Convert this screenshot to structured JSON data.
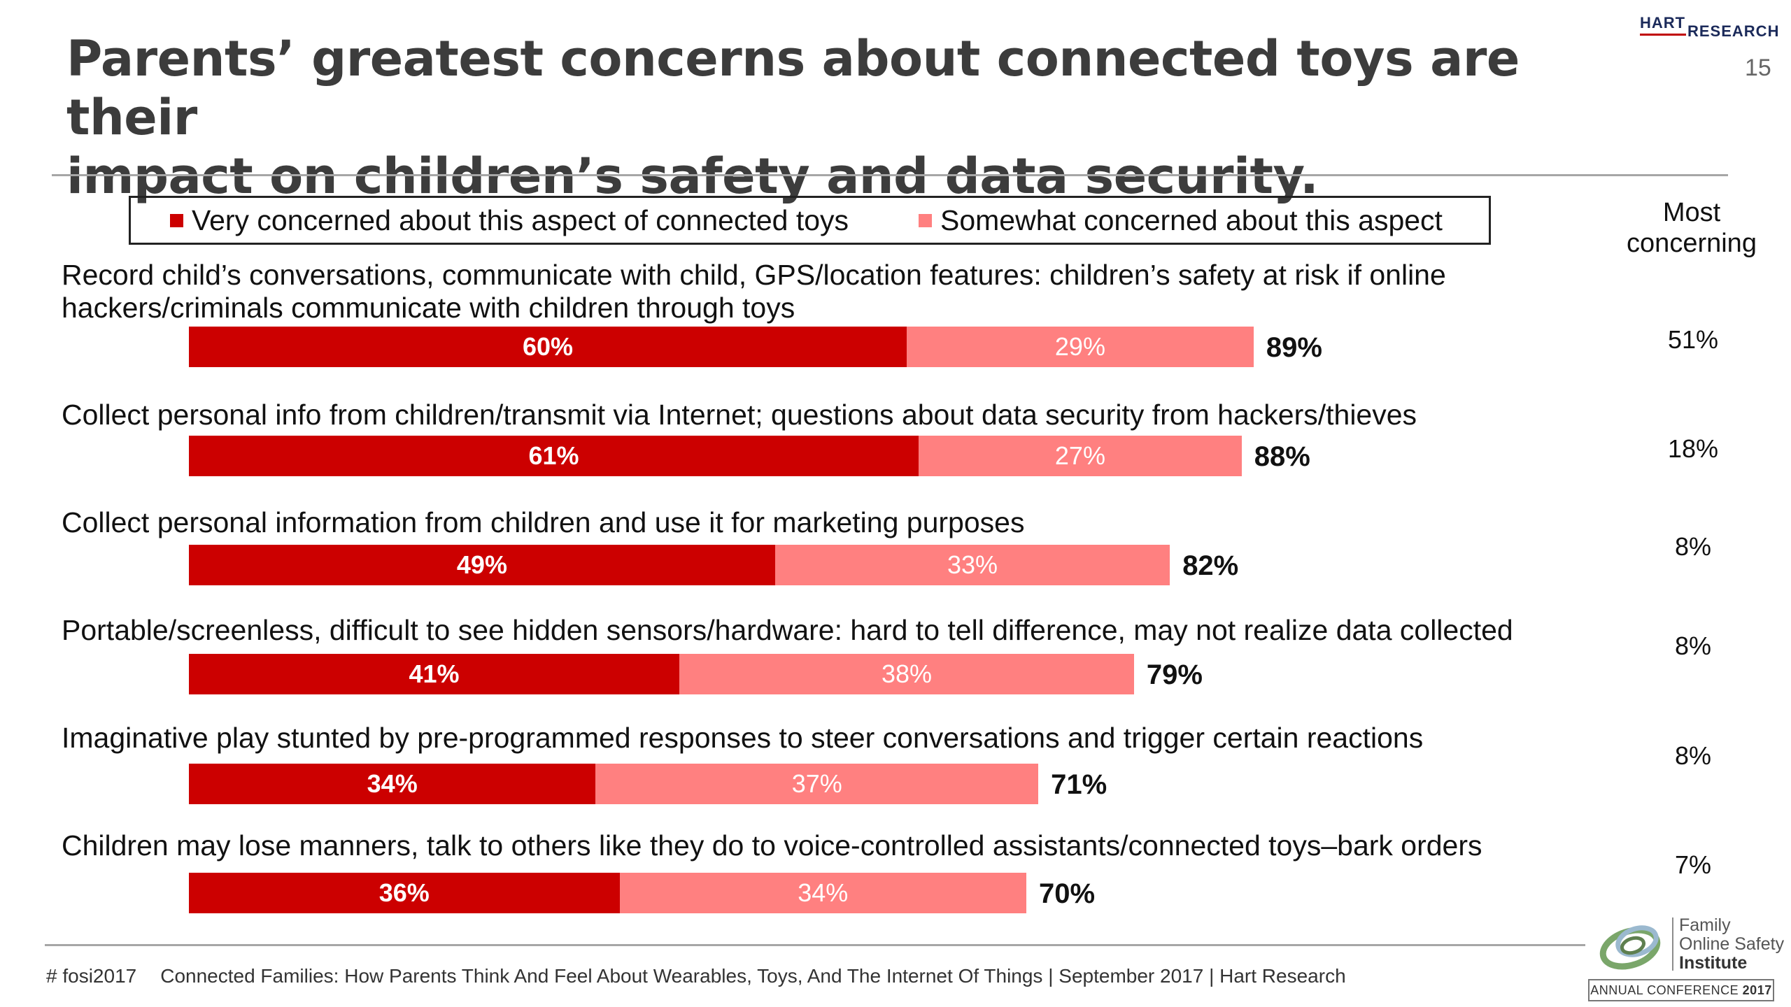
{
  "header": {
    "title_line1": "Parents’ greatest concerns about connected toys are their",
    "title_line2": "impact on children’s safety and data security.",
    "brand_hart": "HART",
    "brand_research": "RESEARCH",
    "page_number": "15"
  },
  "legend": {
    "very": "Very concerned about this aspect of connected toys",
    "somewhat": "Somewhat concerned about this aspect"
  },
  "column_header": {
    "line1": "Most",
    "line2": "concerning"
  },
  "colors": {
    "very": "#cc0000",
    "somewhat": "#ff8080",
    "rule": "#a6a6a6",
    "title": "#3c3c3c"
  },
  "chart_data": {
    "type": "bar",
    "orientation": "horizontal",
    "stacked": true,
    "xlim": [
      0,
      100
    ],
    "grid": false,
    "legend_position": "top",
    "categories": [
      [
        "Record child’s conversations, communicate with child, GPS/location features: children’s safety at risk if online",
        "hackers/criminals communicate with children through toys"
      ],
      [
        "Collect personal info from children/transmit via Internet; questions about data security from hackers/thieves"
      ],
      [
        "Collect personal information from children and use it for marketing purposes"
      ],
      [
        "Portable/screenless, difficult to see hidden sensors/hardware: hard to tell difference, may not realize data collected"
      ],
      [
        "Imaginative play stunted by pre-programmed responses to steer conversations and trigger certain reactions"
      ],
      [
        "Children may lose manners, talk to others like they do to voice-controlled assistants/connected toys–bark orders"
      ]
    ],
    "series": [
      {
        "name": "Very concerned about this aspect of connected toys",
        "values": [
          60,
          61,
          49,
          41,
          34,
          36
        ],
        "labels": [
          "60%",
          "61%",
          "49%",
          "41%",
          "34%",
          "36%"
        ]
      },
      {
        "name": "Somewhat concerned about this aspect",
        "values": [
          29,
          27,
          33,
          38,
          37,
          34
        ],
        "labels": [
          "29%",
          "27%",
          "33%",
          "38%",
          "37%",
          "34%"
        ]
      }
    ],
    "totals": [
      "89%",
      "88%",
      "82%",
      "79%",
      "71%",
      "70%"
    ],
    "most_concerning": [
      "51%",
      "18%",
      "8%",
      "8%",
      "8%",
      "7%"
    ]
  },
  "footer": {
    "hashtag": "# fosi2017",
    "source": "Connected Families: How Parents Think And Feel About Wearables, Toys, And The Internet Of Things | September 2017 | Hart Research"
  },
  "fosi_logo": {
    "line1": "Family",
    "line2": "Online Safety",
    "line3": "Institute",
    "conference_prefix": "ANNUAL CONFERENCE",
    "conference_year": "2017"
  }
}
